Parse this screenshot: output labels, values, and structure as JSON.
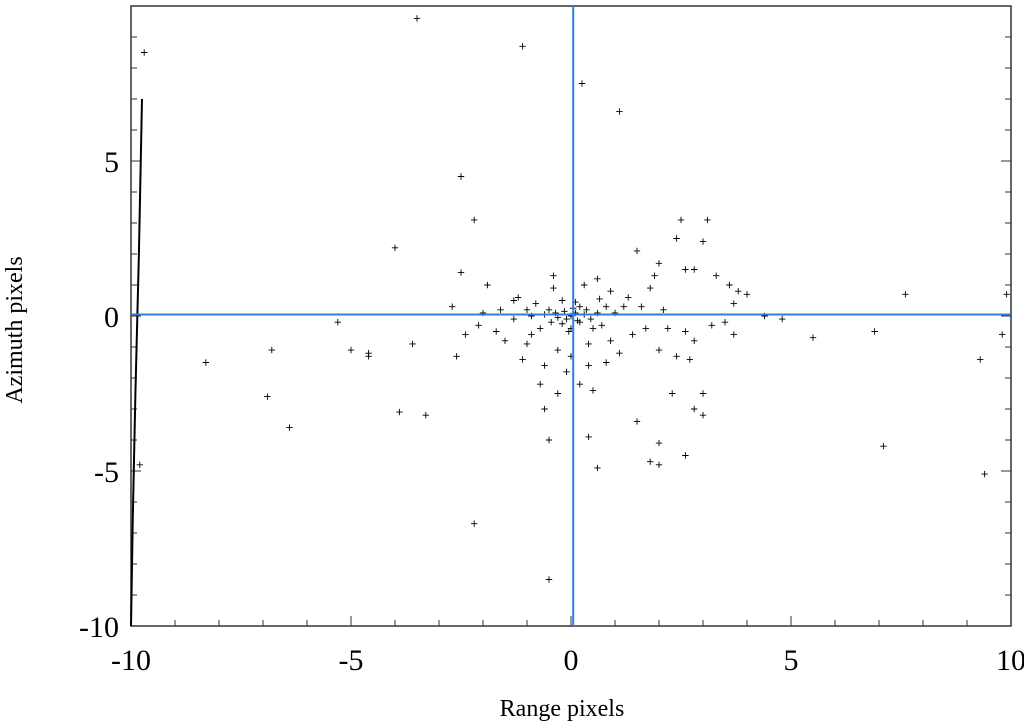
{
  "chart_data": {
    "type": "scatter",
    "title": "",
    "xlabel": "Range pixels",
    "ylabel": "Azimuth pixels",
    "xlim": [
      -10,
      10
    ],
    "ylim": [
      -10,
      10
    ],
    "x_ticks": [
      -10,
      -5,
      0,
      5,
      10
    ],
    "y_ticks": [
      -10,
      -5,
      0,
      5
    ],
    "x_tick_labels": [
      "-10",
      "-5",
      "0",
      "5",
      "10"
    ],
    "y_tick_labels": [
      "-10",
      "-5",
      "0",
      "5"
    ],
    "grid": false,
    "crosshair": {
      "x": 0.05,
      "y": 0.05,
      "color": "#2f7ee0"
    },
    "marker": "+",
    "marker_color": "#000000",
    "outline_curve": [
      [
        -9.75,
        7.0
      ],
      [
        -9.82,
        2.0
      ],
      [
        -9.9,
        -2.5
      ],
      [
        -9.96,
        -6.5
      ],
      [
        -10.0,
        -10.0
      ]
    ],
    "points": [
      [
        -3.5,
        9.6
      ],
      [
        -1.1,
        8.7
      ],
      [
        0.25,
        7.5
      ],
      [
        1.1,
        6.6
      ],
      [
        -9.7,
        8.5
      ],
      [
        -2.5,
        4.5
      ],
      [
        -2.2,
        3.1
      ],
      [
        -4.0,
        2.2
      ],
      [
        -2.5,
        1.4
      ],
      [
        -9.8,
        -4.8
      ],
      [
        -5.3,
        -0.2
      ],
      [
        -5.0,
        -1.1
      ],
      [
        -4.6,
        -1.3
      ],
      [
        -4.6,
        -1.2
      ],
      [
        -3.9,
        -3.1
      ],
      [
        -3.3,
        -3.2
      ],
      [
        -6.8,
        -1.1
      ],
      [
        -6.9,
        -2.6
      ],
      [
        -6.4,
        -3.6
      ],
      [
        -8.3,
        -1.5
      ],
      [
        -3.6,
        -0.9
      ],
      [
        -2.4,
        -0.6
      ],
      [
        -2.6,
        -1.3
      ],
      [
        -2.7,
        0.3
      ],
      [
        -2.2,
        -6.7
      ],
      [
        -0.5,
        -8.5
      ],
      [
        -0.5,
        -4.0
      ],
      [
        -0.6,
        -3.0
      ],
      [
        -0.3,
        -2.5
      ],
      [
        -0.7,
        -2.2
      ],
      [
        -0.1,
        -1.8
      ],
      [
        0.4,
        -3.9
      ],
      [
        0.6,
        -4.9
      ],
      [
        1.5,
        -3.4
      ],
      [
        1.8,
        -4.7
      ],
      [
        2.0,
        -4.8
      ],
      [
        2.0,
        -4.1
      ],
      [
        2.6,
        -4.5
      ],
      [
        2.3,
        -2.5
      ],
      [
        2.8,
        -3.0
      ],
      [
        3.0,
        -3.2
      ],
      [
        3.0,
        -2.5
      ],
      [
        2.5,
        3.1
      ],
      [
        3.1,
        3.1
      ],
      [
        3.0,
        2.4
      ],
      [
        2.4,
        2.5
      ],
      [
        1.5,
        2.1
      ],
      [
        2.0,
        1.7
      ],
      [
        2.6,
        1.5
      ],
      [
        2.8,
        1.5
      ],
      [
        3.3,
        1.3
      ],
      [
        3.6,
        1.0
      ],
      [
        3.8,
        0.8
      ],
      [
        4.0,
        0.7
      ],
      [
        3.7,
        0.4
      ],
      [
        4.4,
        0.0
      ],
      [
        4.8,
        -0.1
      ],
      [
        5.5,
        -0.7
      ],
      [
        6.9,
        -0.5
      ],
      [
        7.1,
        -4.2
      ],
      [
        7.6,
        0.7
      ],
      [
        9.3,
        -1.4
      ],
      [
        9.4,
        -5.1
      ],
      [
        9.8,
        -0.6
      ],
      [
        9.9,
        0.7
      ],
      [
        2.8,
        -0.8
      ],
      [
        3.2,
        -0.3
      ],
      [
        3.5,
        -0.2
      ],
      [
        3.7,
        -0.6
      ],
      [
        2.6,
        -0.5
      ],
      [
        2.4,
        -1.3
      ],
      [
        2.7,
        -1.4
      ],
      [
        2.0,
        -1.1
      ],
      [
        1.4,
        -0.6
      ],
      [
        1.7,
        -0.4
      ],
      [
        1.2,
        0.3
      ],
      [
        0.9,
        0.8
      ],
      [
        0.6,
        1.2
      ],
      [
        0.3,
        1.0
      ],
      [
        -0.4,
        0.9
      ],
      [
        -0.2,
        0.5
      ],
      [
        -0.5,
        0.2
      ],
      [
        -0.9,
        0.0
      ],
      [
        -1.3,
        -0.1
      ],
      [
        -1.6,
        0.2
      ],
      [
        -1.9,
        1.0
      ],
      [
        -1.7,
        -0.5
      ],
      [
        -1.0,
        -0.9
      ],
      [
        -1.1,
        -1.4
      ],
      [
        -0.6,
        -1.6
      ],
      [
        -0.3,
        -1.1
      ],
      [
        0.0,
        -1.3
      ],
      [
        0.4,
        -0.9
      ],
      [
        0.8,
        -1.5
      ],
      [
        1.1,
        -1.2
      ],
      [
        0.5,
        -0.4
      ],
      [
        0.2,
        -0.2
      ],
      [
        0.0,
        0.0
      ],
      [
        0.1,
        0.1
      ],
      [
        -0.1,
        -0.1
      ],
      [
        0.05,
        0.25
      ],
      [
        -0.15,
        0.15
      ],
      [
        0.15,
        -0.15
      ],
      [
        0.3,
        0.05
      ],
      [
        -0.3,
        -0.05
      ],
      [
        -0.2,
        -0.25
      ],
      [
        0.2,
        0.3
      ],
      [
        0.35,
        0.2
      ],
      [
        -0.35,
        0.1
      ],
      [
        0.0,
        -0.4
      ],
      [
        0.45,
        -0.1
      ],
      [
        -0.45,
        -0.2
      ],
      [
        0.1,
        0.45
      ],
      [
        -0.05,
        -0.5
      ],
      [
        0.6,
        0.1
      ],
      [
        -0.6,
        0.05
      ],
      [
        0.7,
        -0.3
      ],
      [
        -0.7,
        -0.4
      ],
      [
        0.8,
        0.3
      ],
      [
        -0.8,
        0.4
      ],
      [
        1.0,
        0.1
      ],
      [
        -1.0,
        0.2
      ],
      [
        1.3,
        0.6
      ],
      [
        -1.3,
        0.5
      ],
      [
        1.6,
        0.3
      ],
      [
        -1.5,
        -0.8
      ],
      [
        0.9,
        -0.8
      ],
      [
        -0.9,
        -0.6
      ],
      [
        0.4,
        -1.6
      ],
      [
        -0.4,
        1.3
      ],
      [
        1.8,
        0.9
      ],
      [
        2.1,
        0.2
      ],
      [
        -2.0,
        0.1
      ],
      [
        2.2,
        -0.4
      ],
      [
        -2.1,
        -0.3
      ],
      [
        0.2,
        -2.2
      ],
      [
        0.5,
        -2.4
      ],
      [
        1.9,
        1.3
      ],
      [
        -1.2,
        0.6
      ],
      [
        0.65,
        0.55
      ]
    ]
  }
}
